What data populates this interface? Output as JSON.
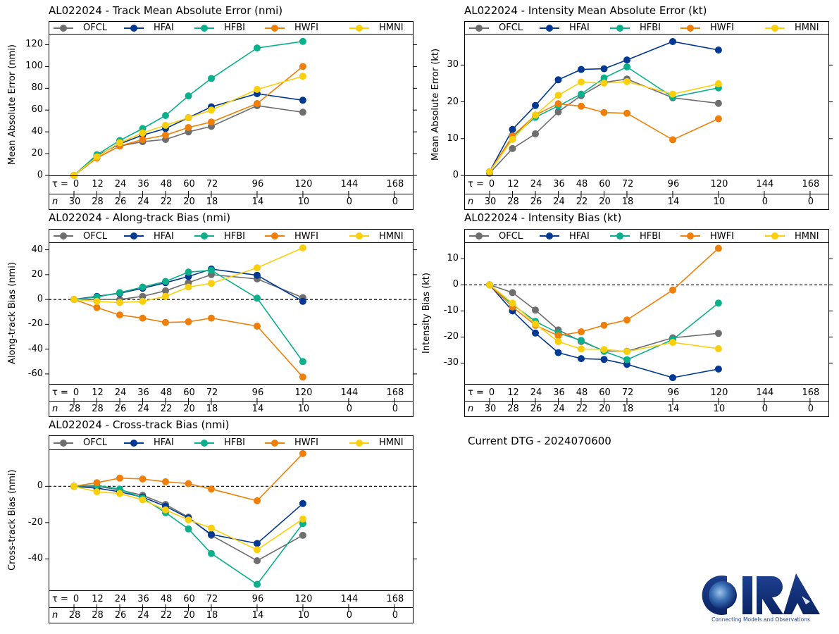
{
  "storm_id": "AL022024",
  "current_dtg_label": "Current DTG - 2024070600",
  "logo": {
    "text": "CIRA",
    "tagline": "Connecting Models and Observations"
  },
  "tau_label": "τ = ",
  "n_label": "n",
  "series_colors": {
    "OFCL": "#6e6e6e",
    "HFAI": "#003893",
    "HFBI": "#0aaf8c",
    "HWFI": "#f07f09",
    "HMNI": "#fccf0b"
  },
  "chart_data": [
    {
      "id": "track-mae",
      "type": "line",
      "title": "AL022024 - Track Mean Absolute Error (nmi)",
      "xlabel": "τ",
      "ylabel": "Mean Absolute Error (nmi)",
      "ylim": [
        0,
        130
      ],
      "yticks": [
        0,
        20,
        40,
        60,
        80,
        100,
        120
      ],
      "zero_line": false,
      "legend": "top",
      "x": [
        0,
        12,
        24,
        36,
        48,
        60,
        72,
        96,
        120
      ],
      "tau_ticks": [
        0,
        12,
        24,
        36,
        48,
        60,
        72,
        96,
        120,
        144,
        168
      ],
      "n_values": [
        30,
        28,
        26,
        24,
        22,
        20,
        18,
        14,
        10,
        0,
        0
      ],
      "series": [
        {
          "name": "OFCL",
          "values": [
            0,
            16,
            27,
            31,
            33,
            40,
            45,
            64,
            58
          ]
        },
        {
          "name": "HFAI",
          "values": [
            0,
            18,
            29,
            37,
            43,
            53,
            63,
            75,
            69
          ]
        },
        {
          "name": "HFBI",
          "values": [
            0,
            19,
            32,
            43,
            55,
            73,
            89,
            117,
            123
          ]
        },
        {
          "name": "HWFI",
          "values": [
            0,
            16,
            27,
            33,
            37,
            44,
            49,
            66,
            100
          ]
        },
        {
          "name": "HMNI",
          "values": [
            0,
            17,
            30,
            39,
            46,
            53,
            60,
            79,
            91
          ]
        }
      ]
    },
    {
      "id": "intensity-mae",
      "type": "line",
      "title": "AL022024 - Intensity Mean Absolute Error (kt)",
      "xlabel": "τ",
      "ylabel": "Mean Absolute Error (kt)",
      "ylim": [
        0,
        38.5
      ],
      "yticks": [
        0,
        10,
        20,
        30
      ],
      "zero_line": false,
      "legend": "top",
      "x": [
        0,
        12,
        24,
        36,
        48,
        60,
        72,
        96,
        120
      ],
      "tau_ticks": [
        0,
        12,
        24,
        36,
        48,
        60,
        72,
        96,
        120,
        144,
        168
      ],
      "n_values": [
        30,
        28,
        26,
        24,
        22,
        20,
        18,
        14,
        10,
        0,
        0
      ],
      "series": [
        {
          "name": "OFCL",
          "values": [
            0.6,
            7.3,
            11.3,
            17.3,
            21.7,
            25.3,
            26.2,
            21.1,
            19.6
          ]
        },
        {
          "name": "HFAI",
          "values": [
            1,
            12.5,
            19,
            26,
            28.8,
            29,
            31.4,
            36.4,
            34.1
          ]
        },
        {
          "name": "HFBI",
          "values": [
            1,
            10.5,
            15.8,
            18.9,
            22.1,
            26.5,
            29.5,
            21.3,
            23.8
          ]
        },
        {
          "name": "HWFI",
          "values": [
            1,
            10.7,
            16.4,
            19.5,
            18.8,
            17.1,
            16.9,
            9.7,
            15.4
          ]
        },
        {
          "name": "HMNI",
          "values": [
            1,
            9.8,
            16.4,
            21.8,
            25.4,
            25.1,
            25.5,
            22.1,
            24.9
          ]
        }
      ]
    },
    {
      "id": "along-track-bias",
      "type": "line",
      "title": "AL022024 - Along-track Bias (nmi)",
      "xlabel": "τ",
      "ylabel": "Along-track Bias (nmi)",
      "ylim": [
        -68,
        46
      ],
      "yticks": [
        -60,
        -40,
        -20,
        0,
        20,
        40
      ],
      "zero_line": true,
      "legend": "top",
      "x": [
        0,
        12,
        24,
        36,
        48,
        60,
        72,
        96,
        120
      ],
      "tau_ticks": [
        0,
        12,
        24,
        36,
        48,
        60,
        72,
        96,
        120,
        144,
        168
      ],
      "n_values": [
        28,
        28,
        26,
        24,
        22,
        20,
        18,
        14,
        10,
        0,
        0
      ],
      "series": [
        {
          "name": "OFCL",
          "values": [
            0,
            0,
            0,
            2.5,
            7,
            13.5,
            20,
            16.5,
            1.5
          ]
        },
        {
          "name": "HFAI",
          "values": [
            0,
            2.5,
            5,
            9,
            13.5,
            18.5,
            24.5,
            19.5,
            -1.5
          ]
        },
        {
          "name": "HFBI",
          "values": [
            0,
            2,
            5.5,
            10,
            14.5,
            22,
            23.5,
            1,
            -50
          ]
        },
        {
          "name": "HWFI",
          "values": [
            0,
            -6.5,
            -12.5,
            -15,
            -18.5,
            -18,
            -15,
            -21.5,
            -62.5
          ]
        },
        {
          "name": "HMNI",
          "values": [
            0,
            -1.5,
            -2.5,
            -1.5,
            2.5,
            10,
            13,
            25.5,
            41.5
          ]
        }
      ]
    },
    {
      "id": "intensity-bias",
      "type": "line",
      "title": "AL022024 - Intensity Bias (kt)",
      "xlabel": "τ",
      "ylabel": "Intensity Bias (kt)",
      "ylim": [
        -38,
        16.3
      ],
      "yticks": [
        -30,
        -20,
        -10,
        0,
        10
      ],
      "zero_line": true,
      "legend": "top",
      "x": [
        0,
        12,
        24,
        36,
        48,
        60,
        72,
        96,
        120
      ],
      "tau_ticks": [
        0,
        12,
        24,
        36,
        48,
        60,
        72,
        96,
        120,
        144,
        168
      ],
      "n_values": [
        30,
        28,
        26,
        24,
        22,
        20,
        18,
        14,
        10,
        0,
        0
      ],
      "series": [
        {
          "name": "OFCL",
          "values": [
            0,
            -3,
            -9.7,
            -17.3,
            -21.7,
            -25.3,
            -25.5,
            -20.3,
            -18.6
          ]
        },
        {
          "name": "HFAI",
          "values": [
            0,
            -10,
            -18.5,
            -26,
            -28.3,
            -28.6,
            -30.5,
            -35.6,
            -32.3
          ]
        },
        {
          "name": "HFBI",
          "values": [
            0,
            -7.5,
            -14,
            -18.5,
            -21.3,
            -25.5,
            -28.7,
            -21,
            -7
          ]
        },
        {
          "name": "HWFI",
          "values": [
            0,
            -8.5,
            -15.5,
            -19.5,
            -18,
            -15.5,
            -13.5,
            -2,
            14
          ]
        },
        {
          "name": "HMNI",
          "values": [
            0,
            -7,
            -15,
            -21.8,
            -24.6,
            -24.8,
            -25.6,
            -22.1,
            -24.5
          ]
        }
      ]
    },
    {
      "id": "cross-track-bias",
      "type": "line",
      "title": "AL022024 - Cross-track Bias (nmi)",
      "xlabel": "τ",
      "ylabel": "Cross-track Bias (nmi)",
      "ylim": [
        -57.3,
        20.3
      ],
      "yticks": [
        -40,
        -20,
        0
      ],
      "zero_line": true,
      "legend": "top",
      "x": [
        0,
        12,
        24,
        36,
        48,
        60,
        72,
        96,
        120
      ],
      "tau_ticks": [
        0,
        12,
        24,
        36,
        48,
        60,
        72,
        96,
        120,
        144,
        168
      ],
      "n_values": [
        28,
        28,
        26,
        24,
        22,
        20,
        18,
        14,
        10,
        0,
        0
      ],
      "series": [
        {
          "name": "OFCL",
          "values": [
            0,
            0,
            -2,
            -5,
            -10,
            -17,
            -27,
            -41,
            -27
          ]
        },
        {
          "name": "HFAI",
          "values": [
            0,
            -1,
            -3,
            -6,
            -11,
            -17.5,
            -26.5,
            -31.5,
            -9.5
          ]
        },
        {
          "name": "HFBI",
          "values": [
            0,
            0.5,
            -1.5,
            -6.5,
            -14.5,
            -23.5,
            -37,
            -54,
            -20.5
          ]
        },
        {
          "name": "HWFI",
          "values": [
            0,
            2,
            4.5,
            4,
            2.5,
            1.5,
            -1.5,
            -8,
            18
          ]
        },
        {
          "name": "HMNI",
          "values": [
            0,
            -3,
            -4,
            -7.5,
            -13,
            -18.5,
            -23,
            -35,
            -18
          ]
        }
      ]
    }
  ]
}
